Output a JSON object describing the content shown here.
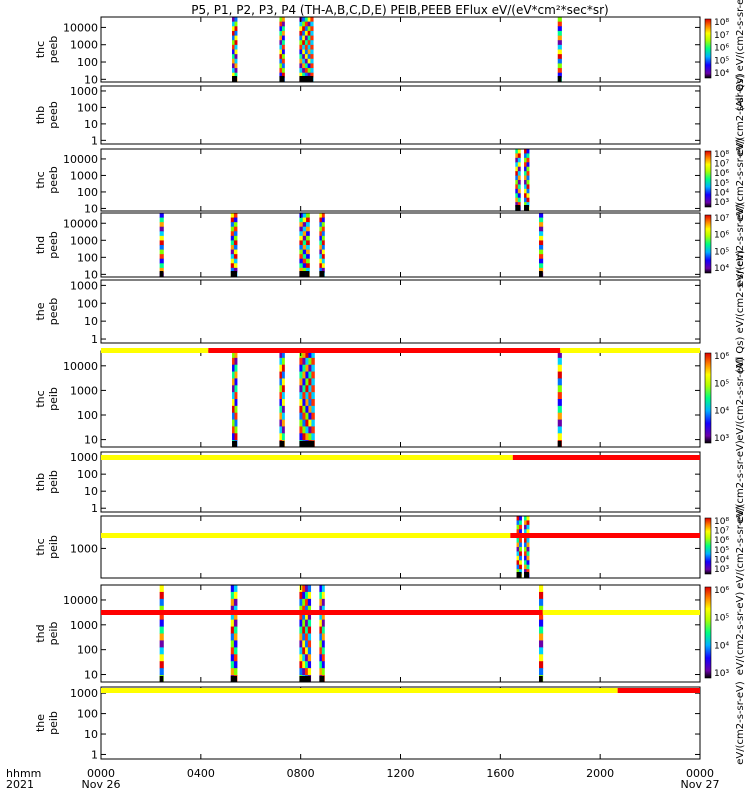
{
  "chart_data": {
    "type": "heatmap",
    "title": "P5, P1, P2, P3, P4 (TH-A,B,C,D,E) PEIB,PEEB EFlux eV/(eV*cm²*sec*sr)",
    "x_axis": {
      "label_line1": "hhmm",
      "label_line2": "2021",
      "range_hours": [
        0,
        24
      ],
      "ticks": [
        {
          "hour": 0,
          "label": "0000",
          "date": "Nov 26"
        },
        {
          "hour": 4,
          "label": "0400",
          "date": ""
        },
        {
          "hour": 8,
          "label": "0800",
          "date": ""
        },
        {
          "hour": 12,
          "label": "1200",
          "date": ""
        },
        {
          "hour": 16,
          "label": "1600",
          "date": ""
        },
        {
          "hour": 20,
          "label": "2000",
          "date": ""
        },
        {
          "hour": 24,
          "label": "0000",
          "date": "Nov 27"
        }
      ]
    },
    "colorbar_label": "eV/(cm2-s-sr-eV)",
    "colorbar_label_alt": "(All Qs)",
    "panels": [
      {
        "probe": "thc",
        "species": "peeb",
        "yscale": "log",
        "ylim": [
          7,
          40000
        ],
        "yticks": [
          {
            "v": 10,
            "t": "10"
          },
          {
            "v": 100,
            "t": "100"
          },
          {
            "v": 1000,
            "t": "1000"
          },
          {
            "v": 10000,
            "t": "10000"
          }
        ],
        "intervals": [
          {
            "x0": 5.25,
            "x1": 5.45
          },
          {
            "x0": 7.15,
            "x1": 7.35
          },
          {
            "x0": 7.95,
            "x1": 8.5
          },
          {
            "x0": 18.3,
            "x1": 18.45
          }
        ],
        "colorbar": [
          "10⁴",
          "10⁵",
          "10⁶",
          "10⁷",
          "10⁸"
        ]
      },
      {
        "probe": "thb",
        "species": "peeb",
        "yscale": "log",
        "ylim": [
          0.6,
          2000
        ],
        "yticks": [
          {
            "v": 1,
            "t": "1"
          },
          {
            "v": 10,
            "t": "10"
          },
          {
            "v": 100,
            "t": "100"
          },
          {
            "v": 1000,
            "t": "1000"
          }
        ],
        "intervals": [],
        "colorbar": []
      },
      {
        "probe": "thc",
        "species": "peeb",
        "yscale": "log",
        "ylim": [
          7,
          40000
        ],
        "yticks": [
          {
            "v": 10,
            "t": "10"
          },
          {
            "v": 100,
            "t": "100"
          },
          {
            "v": 1000,
            "t": "1000"
          },
          {
            "v": 10000,
            "t": "10000"
          }
        ],
        "intervals": [
          {
            "x0": 16.6,
            "x1": 16.8
          },
          {
            "x0": 16.95,
            "x1": 17.15
          }
        ],
        "colorbar": [
          "10³",
          "10⁴",
          "10⁵",
          "10⁶",
          "10⁷",
          "10⁸"
        ]
      },
      {
        "probe": "thd",
        "species": "peeb",
        "yscale": "log",
        "ylim": [
          7,
          40000
        ],
        "yticks": [
          {
            "v": 10,
            "t": "10"
          },
          {
            "v": 100,
            "t": "100"
          },
          {
            "v": 1000,
            "t": "1000"
          },
          {
            "v": 10000,
            "t": "10000"
          }
        ],
        "intervals": [
          {
            "x0": 2.35,
            "x1": 2.5
          },
          {
            "x0": 5.2,
            "x1": 5.45
          },
          {
            "x0": 7.95,
            "x1": 8.35
          },
          {
            "x0": 8.75,
            "x1": 8.95
          },
          {
            "x0": 17.55,
            "x1": 17.7
          }
        ],
        "colorbar": [
          "10⁴",
          "10⁵",
          "10⁶",
          "10⁷"
        ]
      },
      {
        "probe": "the",
        "species": "peeb",
        "yscale": "log",
        "ylim": [
          0.6,
          2000
        ],
        "yticks": [
          {
            "v": 1,
            "t": "1"
          },
          {
            "v": 10,
            "t": "10"
          },
          {
            "v": 100,
            "t": "100"
          },
          {
            "v": 1000,
            "t": "1000"
          }
        ],
        "intervals": [],
        "colorbar": []
      },
      {
        "probe": "thc",
        "species": "peib",
        "yscale": "log",
        "ylim": [
          5,
          40000
        ],
        "yticks": [
          {
            "v": 10,
            "t": "10"
          },
          {
            "v": 100,
            "t": "100"
          },
          {
            "v": 1000,
            "t": "1000"
          },
          {
            "v": 10000,
            "t": "10000"
          }
        ],
        "intervals": [
          {
            "x0": 5.25,
            "x1": 5.45
          },
          {
            "x0": 7.15,
            "x1": 7.35
          },
          {
            "x0": 7.95,
            "x1": 8.55
          },
          {
            "x0": 18.3,
            "x1": 18.45
          }
        ],
        "colorbar": [
          "10³",
          "10⁴",
          "10⁵",
          "10⁶"
        ],
        "mode_bar": [
          {
            "x0": 0,
            "x1": 4.3,
            "c": "y"
          },
          {
            "x0": 4.3,
            "x1": 18.4,
            "c": "r"
          },
          {
            "x0": 18.4,
            "x1": 24,
            "c": "y"
          }
        ]
      },
      {
        "probe": "thb",
        "species": "peib",
        "yscale": "log",
        "ylim": [
          0.6,
          2000
        ],
        "yticks": [
          {
            "v": 1,
            "t": "1"
          },
          {
            "v": 10,
            "t": "10"
          },
          {
            "v": 100,
            "t": "100"
          },
          {
            "v": 1000,
            "t": "1000"
          }
        ],
        "intervals": [],
        "colorbar": [],
        "mode_bar": [
          {
            "x0": 0,
            "x1": 16.5,
            "c": "y"
          },
          {
            "x0": 16.5,
            "x1": 24,
            "c": "r"
          }
        ]
      },
      {
        "probe": "thc",
        "species": "peib",
        "yscale": "log",
        "ylim": [
          150,
          8000
        ],
        "yticks": [
          {
            "v": 1000,
            "t": "1000"
          }
        ],
        "intervals": [
          {
            "x0": 16.65,
            "x1": 16.85
          },
          {
            "x0": 16.95,
            "x1": 17.15
          }
        ],
        "colorbar": [
          "10³",
          "10⁴",
          "10⁵",
          "10⁶",
          "10⁷",
          "10⁸"
        ],
        "mode_bar": [
          {
            "x0": 0,
            "x1": 16.4,
            "c": "y"
          },
          {
            "x0": 16.4,
            "x1": 24,
            "c": "r"
          }
        ]
      },
      {
        "probe": "thd",
        "species": "peib",
        "yscale": "log",
        "ylim": [
          5,
          40000
        ],
        "yticks": [
          {
            "v": 10,
            "t": "10"
          },
          {
            "v": 100,
            "t": "100"
          },
          {
            "v": 1000,
            "t": "1000"
          },
          {
            "v": 10000,
            "t": "10000"
          }
        ],
        "intervals": [
          {
            "x0": 2.35,
            "x1": 2.5
          },
          {
            "x0": 5.2,
            "x1": 5.45
          },
          {
            "x0": 7.95,
            "x1": 8.4
          },
          {
            "x0": 8.75,
            "x1": 8.95
          },
          {
            "x0": 17.55,
            "x1": 17.7
          }
        ],
        "colorbar": [
          "10³",
          "10⁴",
          "10⁵",
          "10⁶"
        ],
        "mode_bar": [
          {
            "x0": 0,
            "x1": 17.7,
            "c": "r"
          },
          {
            "x0": 17.7,
            "x1": 24,
            "c": "y"
          }
        ]
      },
      {
        "probe": "the",
        "species": "peib",
        "yscale": "log",
        "ylim": [
          0.6,
          2000
        ],
        "yticks": [
          {
            "v": 1,
            "t": "1"
          },
          {
            "v": 10,
            "t": "10"
          },
          {
            "v": 100,
            "t": "100"
          },
          {
            "v": 1000,
            "t": "1000"
          }
        ],
        "intervals": [],
        "colorbar": [],
        "mode_bar": [
          {
            "x0": 0,
            "x1": 20.7,
            "c": "y"
          },
          {
            "x0": 20.7,
            "x1": 24,
            "c": "r"
          }
        ]
      }
    ]
  },
  "colors": {
    "mode_yellow": "#ffff00",
    "mode_red": "#ff0000",
    "spectrogram_palette": [
      "#6a00a8",
      "#1400ff",
      "#0070ff",
      "#00d0ff",
      "#00ff90",
      "#80ff00",
      "#ffff00",
      "#ffa000",
      "#ff3000",
      "#e00000"
    ]
  }
}
